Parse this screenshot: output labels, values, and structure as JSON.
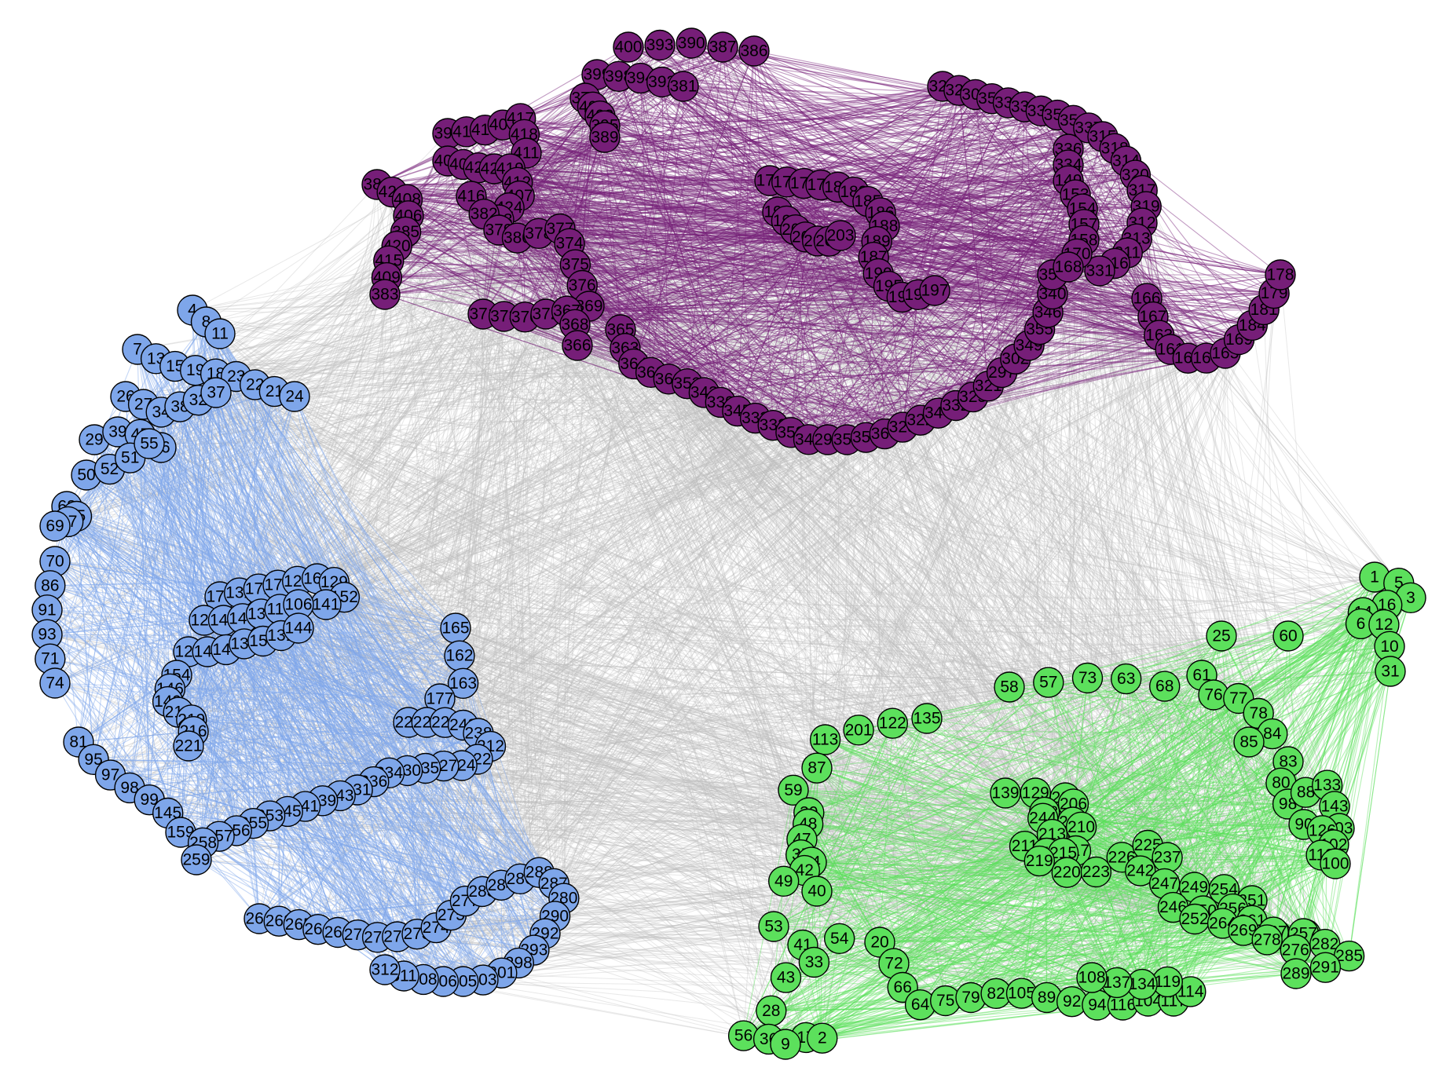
{
  "colors": {
    "background": "#ffffff",
    "edge_between": "#bebebe",
    "cluster_purple": "#761e78",
    "cluster_blue": "#7ea6ea",
    "cluster_green": "#5ce05c",
    "node_outline": "#000000",
    "label": "#000000"
  },
  "clusters": [
    {
      "name": "purple",
      "color": "#761e78",
      "nodes": [
        "400",
        "393",
        "390",
        "387",
        "386",
        "399",
        "398",
        "394",
        "392",
        "381",
        "376",
        "404",
        "403",
        "395",
        "389",
        "397",
        "410",
        "414",
        "405",
        "417",
        "418",
        "411",
        "401",
        "402",
        "422",
        "423",
        "419",
        "412",
        "407",
        "424",
        "413",
        "384",
        "421",
        "408",
        "406",
        "385",
        "420",
        "415",
        "409",
        "383",
        "416",
        "382",
        "379",
        "380",
        "378",
        "377",
        "374",
        "375",
        "376b",
        "369",
        "371",
        "373",
        "370",
        "372",
        "367",
        "368",
        "366",
        "365",
        "363",
        "364",
        "361",
        "362",
        "353",
        "343",
        "339",
        "345",
        "333",
        "332",
        "359",
        "342",
        "290",
        "352",
        "351",
        "360",
        "323",
        "322",
        "344",
        "332b",
        "325",
        "321",
        "297",
        "302",
        "349",
        "355",
        "346",
        "340",
        "357",
        "329",
        "326",
        "301",
        "356",
        "339b",
        "335",
        "338",
        "350",
        "354",
        "337",
        "315",
        "318",
        "314",
        "320",
        "317",
        "319",
        "312",
        "313",
        "311",
        "316",
        "331",
        "336",
        "334",
        "149",
        "153",
        "154",
        "157",
        "158",
        "170",
        "168",
        "166",
        "167",
        "163",
        "161",
        "162",
        "164",
        "165",
        "169",
        "184",
        "181",
        "179",
        "178",
        "174",
        "172",
        "173",
        "171",
        "182",
        "183",
        "185",
        "186",
        "188",
        "189",
        "187",
        "190",
        "195",
        "196",
        "194",
        "197",
        "198",
        "199",
        "200",
        "201",
        "202",
        "204",
        "203"
      ]
    },
    {
      "name": "blue",
      "color": "#7ea6ea",
      "nodes": [
        "4",
        "8",
        "11",
        "7",
        "13",
        "15",
        "19",
        "18",
        "23",
        "22",
        "21",
        "24",
        "26",
        "27",
        "34",
        "38",
        "32",
        "37",
        "29",
        "39",
        "45",
        "46",
        "50",
        "52",
        "51",
        "55",
        "62",
        "65",
        "67",
        "69",
        "70",
        "86",
        "91",
        "93",
        "71",
        "74",
        "81",
        "95",
        "97",
        "98",
        "99",
        "145",
        "159",
        "165b",
        "162b",
        "163b",
        "177",
        "176",
        "132",
        "171",
        "170",
        "123",
        "160",
        "129",
        "152",
        "141",
        "121",
        "140",
        "148",
        "138",
        "110",
        "106",
        "124",
        "142",
        "147",
        "135",
        "158",
        "131",
        "144",
        "154b",
        "146",
        "149b",
        "218",
        "219",
        "216",
        "221",
        "225",
        "229",
        "220",
        "248",
        "238",
        "212",
        "222",
        "224",
        "227",
        "235",
        "230",
        "234",
        "236",
        "231",
        "243",
        "239",
        "241",
        "245",
        "253",
        "255",
        "256",
        "257",
        "258",
        "259",
        "260",
        "262",
        "265",
        "266",
        "268",
        "270",
        "272",
        "271",
        "273",
        "274",
        "275",
        "277",
        "283",
        "284",
        "286",
        "288",
        "287",
        "280",
        "290b",
        "292",
        "293",
        "298",
        "301",
        "303",
        "305",
        "306",
        "308",
        "311",
        "312"
      ]
    },
    {
      "name": "green",
      "color": "#5ce05c",
      "nodes": [
        "1",
        "5",
        "3",
        "16",
        "14",
        "6",
        "12",
        "10",
        "31",
        "25",
        "60",
        "58",
        "57",
        "73",
        "63",
        "68",
        "61",
        "76",
        "77",
        "78",
        "84",
        "85",
        "83",
        "80",
        "98b",
        "88",
        "133",
        "143",
        "103",
        "90",
        "126",
        "102",
        "118",
        "100",
        "135",
        "122",
        "201",
        "113",
        "87",
        "59",
        "30",
        "48",
        "47",
        "35",
        "44",
        "42",
        "49",
        "40",
        "53",
        "41",
        "54",
        "33",
        "43",
        "28",
        "56",
        "36",
        "17",
        "2",
        "9",
        "20",
        "72",
        "66",
        "64",
        "75",
        "79",
        "82",
        "105",
        "89",
        "92",
        "94",
        "116",
        "104",
        "117",
        "114",
        "119",
        "134",
        "137",
        "108",
        "139",
        "129b",
        "209",
        "206",
        "208",
        "244",
        "212b",
        "210",
        "213",
        "211",
        "214",
        "217",
        "215",
        "219b",
        "220b",
        "223",
        "226",
        "225b",
        "237",
        "242",
        "247",
        "249",
        "254",
        "251",
        "256b",
        "250",
        "246",
        "252",
        "264",
        "261",
        "263",
        "265b",
        "257b",
        "267",
        "269",
        "278",
        "276",
        "282",
        "285",
        "291",
        "289"
      ]
    }
  ]
}
